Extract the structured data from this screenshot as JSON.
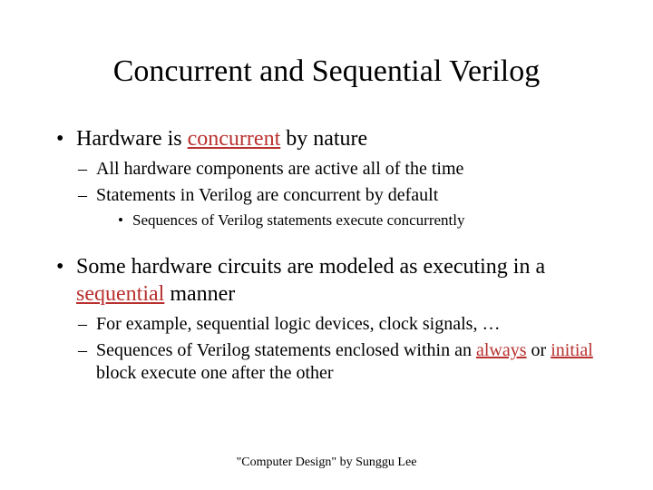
{
  "colors": {
    "background": "#ffffff",
    "text": "#000000",
    "highlight": "#b8312f"
  },
  "slide": {
    "title": "Concurrent and Sequential Verilog",
    "bullets": [
      {
        "prefix": "Hardware is ",
        "highlight": "concurrent",
        "highlight_underline": true,
        "suffix": " by nature",
        "children": [
          {
            "text": "All hardware components are active all of the time"
          },
          {
            "text": "Statements in Verilog are concurrent by default",
            "children": [
              {
                "text": "Sequences of Verilog statements execute concurrently"
              }
            ]
          }
        ]
      },
      {
        "prefix": "Some hardware circuits are modeled as executing in a ",
        "highlight": "sequential",
        "highlight_underline": true,
        "suffix": " manner",
        "children": [
          {
            "text": "For example, sequential logic devices, clock signals, …"
          },
          {
            "runs": [
              {
                "text": "Sequences of Verilog statements enclosed within an "
              },
              {
                "text": "always",
                "highlight": true,
                "underline": true
              },
              {
                "text": " or "
              },
              {
                "text": "initial",
                "highlight": true,
                "underline": true
              },
              {
                "text": " block execute one after the other"
              }
            ]
          }
        ]
      }
    ],
    "footer": "\"Computer Design\" by Sunggu Lee"
  },
  "typography": {
    "title_fontsize": 34,
    "level1_fontsize": 24,
    "level2_fontsize": 20,
    "level3_fontsize": 17,
    "footer_fontsize": 14,
    "font_family": "Times New Roman"
  }
}
